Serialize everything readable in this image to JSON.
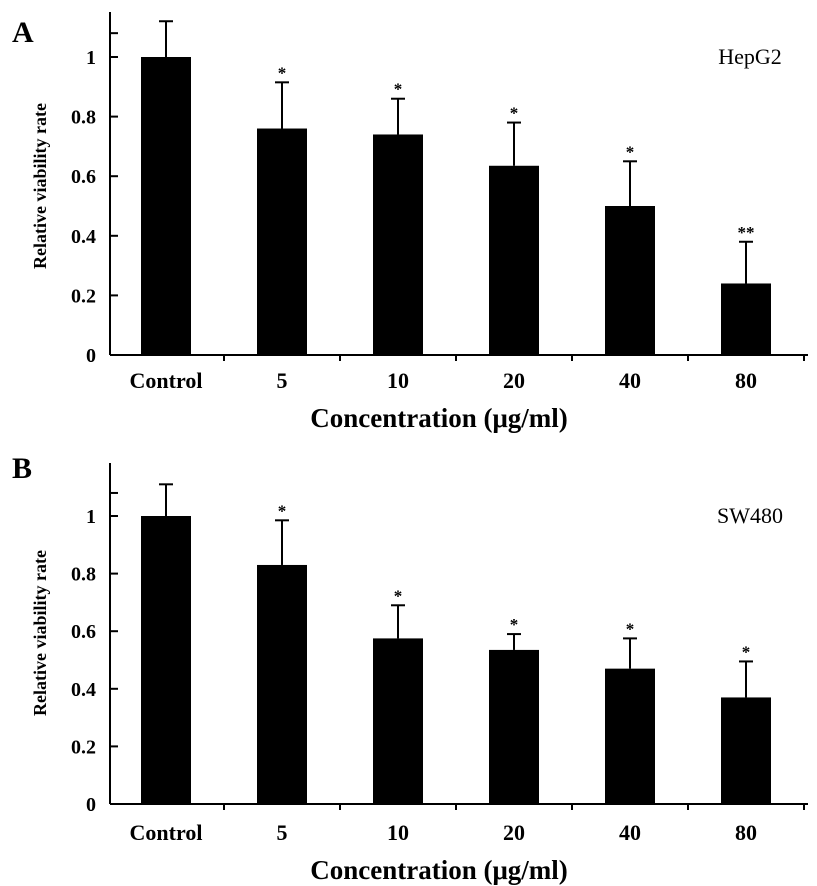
{
  "chart_data": [
    {
      "type": "bar",
      "panel_label": "A",
      "annotation": "HepG2",
      "categories": [
        "Control",
        "5",
        "10",
        "20",
        "40",
        "80"
      ],
      "values": [
        1.0,
        0.76,
        0.74,
        0.635,
        0.5,
        0.24
      ],
      "error": [
        0.12,
        0.155,
        0.12,
        0.145,
        0.15,
        0.14
      ],
      "significance": [
        "",
        "*",
        "*",
        "*",
        "*",
        "**"
      ],
      "xlabel": "Concentration (μg/ml)",
      "ylabel": "Relative viability rate",
      "yticks": [
        "0",
        "0.2",
        "0.4",
        "0.6",
        "0.8",
        "1"
      ],
      "ylim": [
        0,
        1.15
      ],
      "bar_color": "#000000",
      "grid": false
    },
    {
      "type": "bar",
      "panel_label": "B",
      "annotation": "SW480",
      "categories": [
        "Control",
        "5",
        "10",
        "20",
        "40",
        "80"
      ],
      "values": [
        1.0,
        0.83,
        0.575,
        0.535,
        0.47,
        0.37
      ],
      "error": [
        0.11,
        0.155,
        0.115,
        0.055,
        0.105,
        0.125
      ],
      "significance": [
        "",
        "*",
        "*",
        "*",
        "*",
        "*"
      ],
      "xlabel": "Concentration (μg/ml)",
      "ylabel": "Relative viability rate",
      "yticks": [
        "0",
        "0.2",
        "0.4",
        "0.6",
        "0.8",
        "1"
      ],
      "ylim": [
        0,
        1.15
      ],
      "bar_color": "#000000",
      "grid": false
    }
  ]
}
